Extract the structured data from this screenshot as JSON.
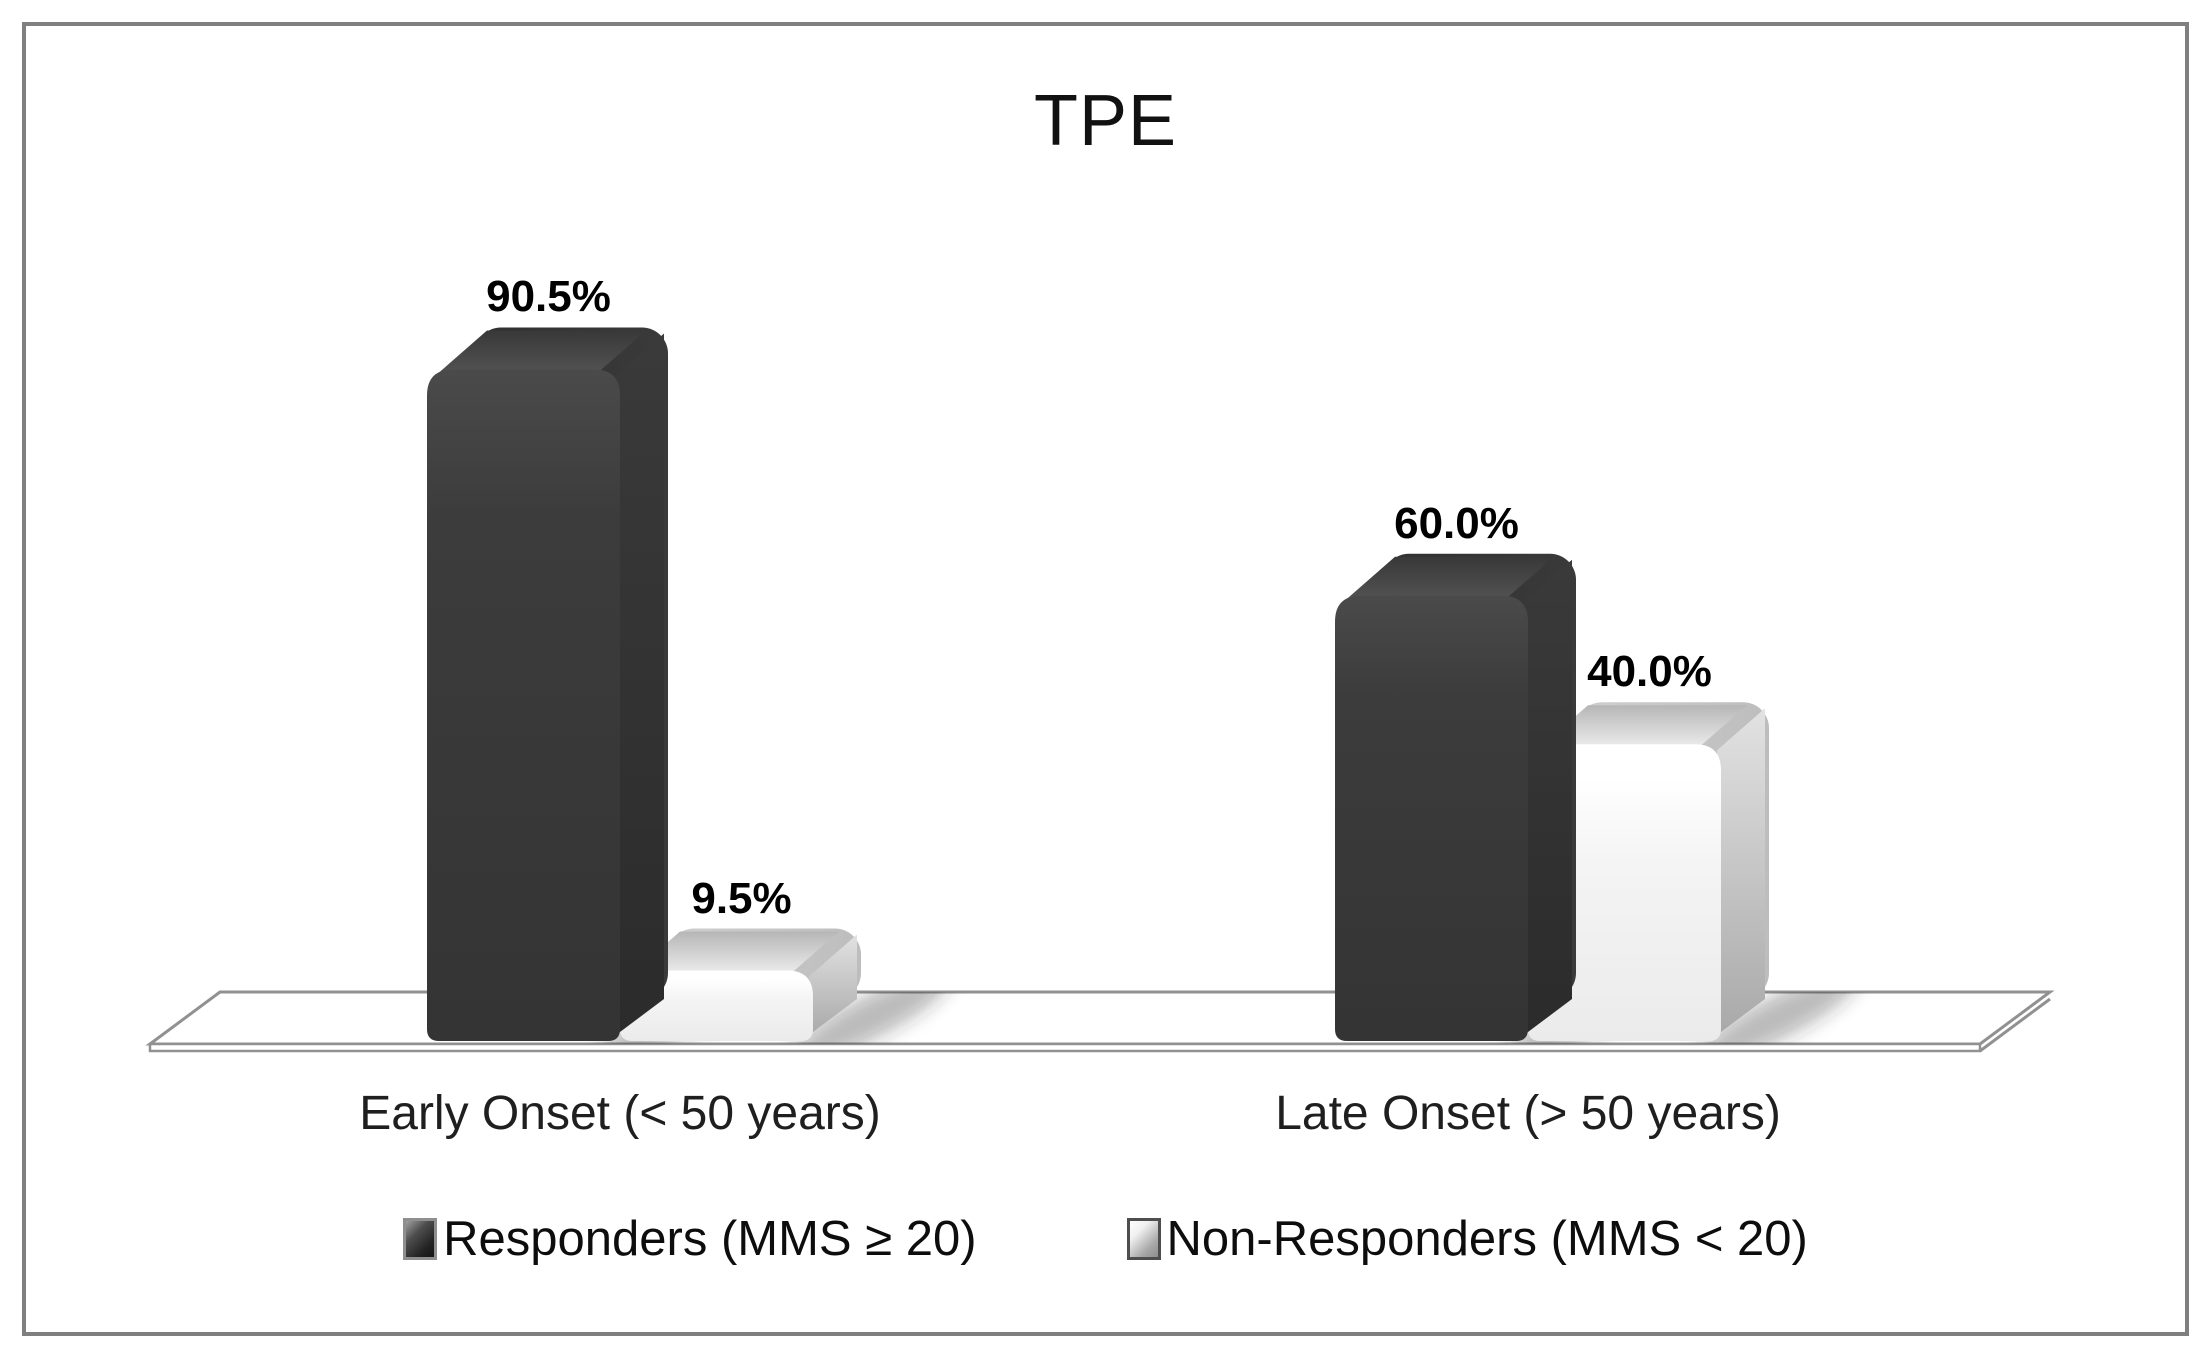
{
  "figure": {
    "title": "TPE"
  },
  "chart_data": {
    "type": "bar",
    "subtype": "3d-clustered-column",
    "title": "TPE",
    "categories": [
      "Early Onset (< 50 years)",
      "Late Onset (> 50 years)"
    ],
    "series": [
      {
        "name": "Responders (MMS ≥ 20)",
        "color": "#3a3a3a",
        "values": [
          90.5,
          60.0
        ],
        "labels": [
          "90.5%",
          "60.0%"
        ]
      },
      {
        "name": "Non-Responders (MMS < 20)",
        "color": "#f2f2f2",
        "values": [
          9.5,
          40.0
        ],
        "labels": [
          "9.5%",
          "40.0%"
        ]
      }
    ],
    "unit": "%",
    "ylim": [
      0,
      100
    ],
    "y_axis_visible": false,
    "grid": false,
    "legend_position": "bottom",
    "data_labels_bold": true
  },
  "colors": {
    "background": "#ffffff",
    "outer_border": "#7f7f7f",
    "floor_outline": "#919191",
    "text": "#1a1a1a",
    "dark_series": "#3a3a3a",
    "light_series": "#f2f2f2"
  }
}
